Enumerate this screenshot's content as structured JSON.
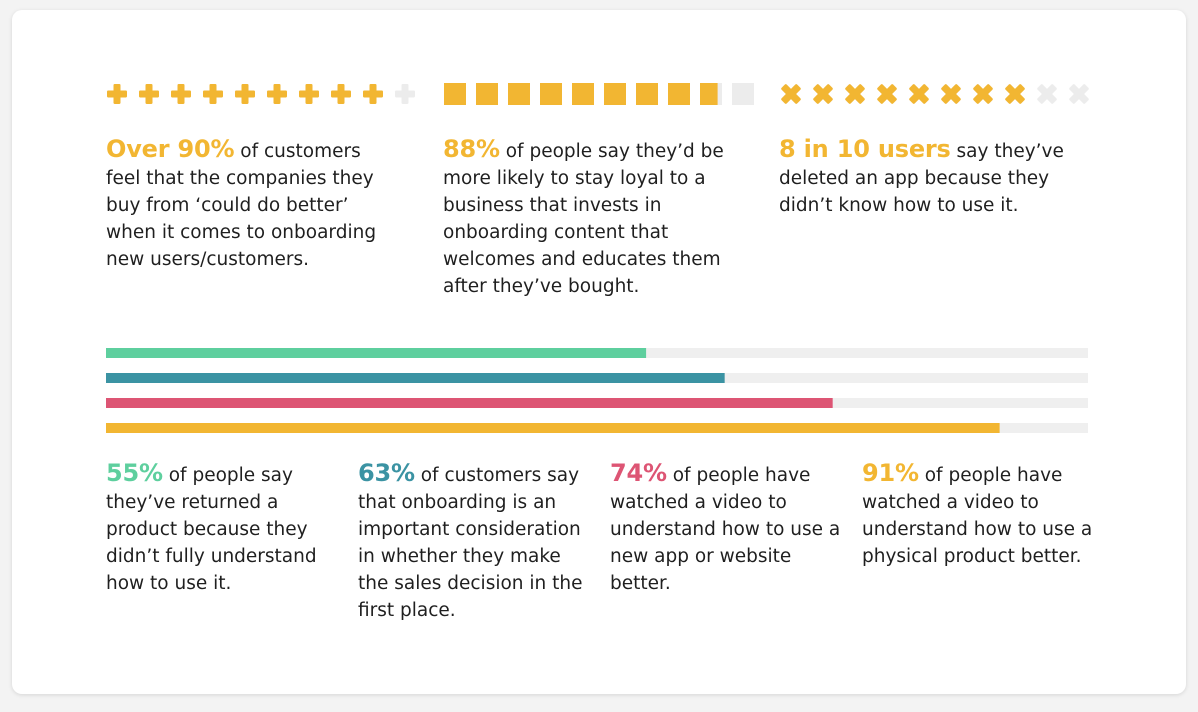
{
  "colors": {
    "yellow": "#f2b632",
    "green": "#5ecf9e",
    "teal": "#3b93a3",
    "pink": "#dd5574",
    "track": "#efefef",
    "icon_empty": "#ececec"
  },
  "top_stats": [
    {
      "highlight": "Over 90%",
      "text": " of customers feel that the companies they buy from ‘could do better’ when it comes to onboarding new users/customers.",
      "icon": "plus-icon",
      "icon_fill": 9.0,
      "icon_total": 10
    },
    {
      "highlight": "88%",
      "text": " of people say they’d be more likely to stay loyal to a business that invests in onboarding content that welcomes and educates them after they’ve bought.",
      "icon": "square-icon",
      "icon_fill": 8.8,
      "icon_total": 10
    },
    {
      "highlight": "8 in 10 users",
      "text": " say they’ve deleted an app because they didn’t know how to use it.",
      "icon": "x-icon",
      "icon_fill": 8.0,
      "icon_total": 10
    }
  ],
  "chart_data": {
    "type": "bar",
    "orientation": "horizontal",
    "categories": [
      "returned a product because they didn't fully understand how to use it",
      "onboarding is an important consideration in the sales decision",
      "watched a video to understand how to use a new app or website",
      "watched a video to understand how to use a physical product"
    ],
    "values": [
      55,
      63,
      74,
      91
    ],
    "xlim": [
      0,
      100
    ],
    "unit": "%",
    "series_colors": [
      "#5ecf9e",
      "#3b93a3",
      "#dd5574",
      "#f2b632"
    ]
  },
  "bottom_stats": [
    {
      "highlight": "55%",
      "text": " of people say they’ve returned a product because they didn’t fully understand how to use it."
    },
    {
      "highlight": "63%",
      "text": " of customers say that onboarding is an important consideration in whether they make the sales decision in the first place."
    },
    {
      "highlight": "74%",
      "text": " of people have watched a video to understand how to use a new app or website better."
    },
    {
      "highlight": "91%",
      "text": " of people have watched a video to understand how to use a physical product better."
    }
  ]
}
